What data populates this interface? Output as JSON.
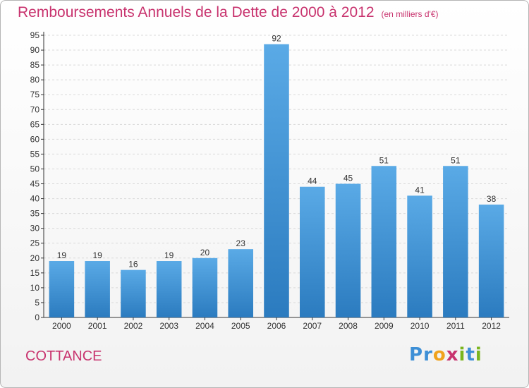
{
  "chart_data": {
    "type": "bar",
    "title": "Remboursements Annuels de la Dette de 2000 à 2012",
    "unit_note": "(en milliers d'€)",
    "categories": [
      "2000",
      "2001",
      "2002",
      "2003",
      "2004",
      "2005",
      "2006",
      "2007",
      "2008",
      "2009",
      "2010",
      "2011",
      "2012"
    ],
    "values": [
      19,
      19,
      16,
      19,
      20,
      23,
      92,
      44,
      45,
      51,
      41,
      51,
      38
    ],
    "ylim": [
      0,
      95
    ],
    "ytick_step": 5,
    "grid": true,
    "bar_color_top": "#5aaae6",
    "bar_color_bottom": "#2b7bbf",
    "grid_color": "#d9d9d9"
  },
  "footer": {
    "city": "COTTANCE",
    "brand": [
      "P",
      "r",
      "o",
      "x",
      "i",
      "t",
      "i"
    ],
    "brand_colors": [
      "#3d8fd6",
      "#3d8fd6",
      "#f0a21c",
      "#c8336e",
      "#7ab51d",
      "#3d8fd6",
      "#7ab51d"
    ]
  }
}
